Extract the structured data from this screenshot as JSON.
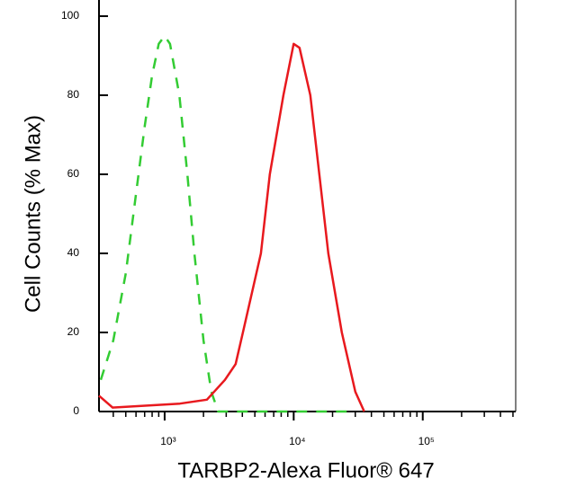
{
  "chart_data": {
    "type": "line",
    "xlabel": "TARBP2-Alexa Fluor® 647",
    "ylabel": "Cell Counts (% Max)",
    "xscale": "log",
    "xlim": [
      310,
      525000
    ],
    "ylim": [
      0,
      100
    ],
    "xticks": [
      {
        "value": 1000,
        "label": "10³"
      },
      {
        "value": 10000,
        "label": "10⁴"
      },
      {
        "value": 100000,
        "label": "10⁵"
      }
    ],
    "xminorticks": [
      400,
      500,
      600,
      700,
      800,
      900,
      2000,
      3000,
      4000,
      5000,
      6000,
      7000,
      8000,
      9000,
      20000,
      30000,
      40000,
      50000,
      60000,
      70000,
      80000,
      90000,
      200000,
      300000,
      400000,
      500000
    ],
    "yticks": [
      0,
      20,
      40,
      60,
      80,
      100
    ],
    "series": [
      {
        "color": "#33cc33",
        "dashed": true,
        "x": [
          320,
          400,
          500,
          600,
          700,
          800,
          900,
          1000,
          1100,
          1300,
          1500,
          1700,
          2000,
          2300,
          2600,
          5000,
          30000
        ],
        "values": [
          8,
          18,
          35,
          55,
          72,
          85,
          93,
          95,
          93,
          80,
          60,
          40,
          18,
          5,
          0,
          0,
          0
        ]
      },
      {
        "color": "#e8191e",
        "dashed": false,
        "x": [
          310,
          395,
          1313,
          2125,
          2930,
          3550,
          4040,
          5570,
          6530,
          8320,
          10000,
          11100,
          13460,
          15800,
          18550,
          23600,
          30000,
          35200
        ],
        "values": [
          4,
          1,
          2,
          3,
          8,
          12,
          20,
          40,
          60,
          80,
          93,
          92,
          80,
          60,
          40,
          20,
          5,
          0
        ]
      }
    ]
  }
}
